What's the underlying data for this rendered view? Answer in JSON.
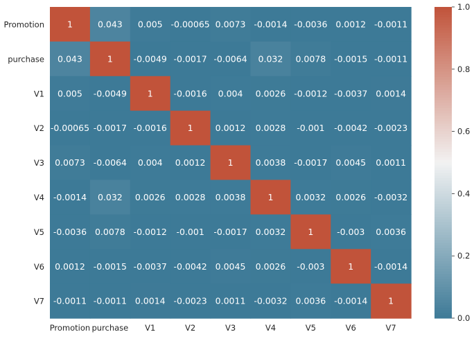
{
  "chart_data": {
    "type": "heatmap",
    "x_labels": [
      "Promotion",
      "purchase",
      "V1",
      "V2",
      "V3",
      "V4",
      "V5",
      "V6",
      "V7"
    ],
    "y_labels": [
      "Promotion",
      "purchase",
      "V1",
      "V2",
      "V3",
      "V4",
      "V5",
      "V6",
      "V7"
    ],
    "values": [
      [
        1,
        0.043,
        0.005,
        -0.00065,
        0.0073,
        -0.0014,
        -0.0036,
        0.0012,
        -0.0011
      ],
      [
        0.043,
        1,
        -0.0049,
        -0.0017,
        -0.0064,
        0.032,
        0.0078,
        -0.0015,
        -0.0011
      ],
      [
        0.005,
        -0.0049,
        1,
        -0.0016,
        0.004,
        0.0026,
        -0.0012,
        -0.0037,
        0.0014
      ],
      [
        -0.00065,
        -0.0017,
        -0.0016,
        1,
        0.0012,
        0.0028,
        -0.001,
        -0.0042,
        -0.0023
      ],
      [
        0.0073,
        -0.0064,
        0.004,
        0.0012,
        1,
        0.0038,
        -0.0017,
        0.0045,
        0.0011
      ],
      [
        -0.0014,
        0.032,
        0.0026,
        0.0028,
        0.0038,
        1,
        0.0032,
        0.0026,
        -0.0032
      ],
      [
        -0.0036,
        0.0078,
        -0.0012,
        -0.001,
        -0.0017,
        0.0032,
        1,
        -0.003,
        0.0036
      ],
      [
        0.0012,
        -0.0015,
        -0.0037,
        -0.0042,
        0.0045,
        0.0026,
        -0.003,
        1,
        -0.0014
      ],
      [
        -0.0011,
        -0.0011,
        0.0014,
        -0.0023,
        0.0011,
        -0.0032,
        0.0036,
        -0.0014,
        1
      ]
    ],
    "annotations": [
      [
        "1",
        "0.043",
        "0.005",
        "-0.00065",
        "0.0073",
        "-0.0014",
        "-0.0036",
        "0.0012",
        "-0.0011"
      ],
      [
        "0.043",
        "1",
        "-0.0049",
        "-0.0017",
        "-0.0064",
        "0.032",
        "0.0078",
        "-0.0015",
        "-0.0011"
      ],
      [
        "0.005",
        "-0.0049",
        "1",
        "-0.0016",
        "0.004",
        "0.0026",
        "-0.0012",
        "-0.0037",
        "0.0014"
      ],
      [
        "-0.00065",
        "-0.0017",
        "-0.0016",
        "1",
        "0.0012",
        "0.0028",
        "-0.001",
        "-0.0042",
        "-0.0023"
      ],
      [
        "0.0073",
        "-0.0064",
        "0.004",
        "0.0012",
        "1",
        "0.0038",
        "-0.0017",
        "0.0045",
        "0.0011"
      ],
      [
        "-0.0014",
        "0.032",
        "0.0026",
        "0.0028",
        "0.0038",
        "1",
        "0.0032",
        "0.0026",
        "-0.0032"
      ],
      [
        "-0.0036",
        "0.0078",
        "-0.0012",
        "-0.001",
        "-0.0017",
        "0.0032",
        "1",
        "-0.003",
        "0.0036"
      ],
      [
        "0.0012",
        "-0.0015",
        "-0.0037",
        "-0.0042",
        "0.0045",
        "0.0026",
        "-0.003",
        "1",
        "-0.0014"
      ],
      [
        "-0.0011",
        "-0.0011",
        "0.0014",
        "-0.0023",
        "0.0011",
        "-0.0032",
        "0.0036",
        "-0.0014",
        "1"
      ]
    ],
    "colorbar": {
      "vmin": 0.0,
      "vmax": 1.0,
      "ticks": [
        0.0,
        0.2,
        0.4,
        0.6,
        0.8,
        1.0
      ],
      "tick_labels": [
        "0.0",
        "0.2",
        "0.4",
        "0.6",
        "0.8",
        "1.0"
      ],
      "low_color": "#3d7a97",
      "mid_color": "#f2f2f2",
      "high_color": "#c1533a"
    },
    "title": "",
    "xlabel": "",
    "ylabel": "",
    "grid": false
  },
  "colors": {
    "text_light": "#ffffff",
    "text_dark": "#262626",
    "background": "#ffffff"
  }
}
